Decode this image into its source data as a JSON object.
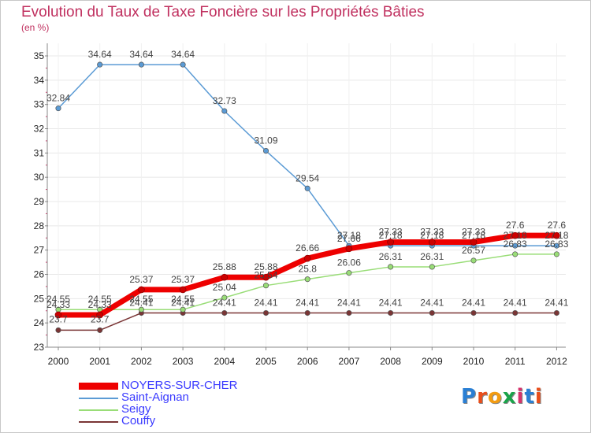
{
  "title": "Evolution du Taux de Taxe Foncière sur les Propriétés Bâties",
  "subtitle": "(en %)",
  "logo": "Proxiti",
  "chart_data": {
    "type": "line",
    "title": "Evolution du Taux de Taxe Foncière sur les Propriétés Bâties",
    "ylabel": "(en %)",
    "xlabel": "",
    "x": [
      "2000",
      "2001",
      "2002",
      "2003",
      "2004",
      "2005",
      "2006",
      "2007",
      "2008",
      "2009",
      "2010",
      "2011",
      "2012"
    ],
    "ylim": [
      23,
      35
    ],
    "yticks": [
      "23",
      "24",
      "25",
      "26",
      "27",
      "28",
      "29",
      "30",
      "31",
      "32",
      "33",
      "34",
      "35"
    ],
    "series": [
      {
        "name": "NOYERS-SUR-CHER",
        "color": "#ee0000",
        "values": [
          24.33,
          24.33,
          25.37,
          25.37,
          25.88,
          25.88,
          26.66,
          27.06,
          27.33,
          27.33,
          27.33,
          27.6,
          27.6
        ],
        "labels": [
          "24.33",
          "24.33",
          "25.37",
          "25.37",
          "25.88",
          "25.88",
          "26.66",
          "27.06",
          "27.33",
          "27.33",
          "27.33",
          "27.6",
          "27.6"
        ]
      },
      {
        "name": "Saint-Aignan",
        "color": "#5b9bd5",
        "values": [
          32.84,
          34.64,
          34.64,
          34.64,
          32.73,
          31.09,
          29.54,
          27.18,
          27.18,
          27.18,
          27.18,
          27.18,
          27.18
        ],
        "labels": [
          "32.84",
          "34.64",
          "34.64",
          "34.64",
          "32.73",
          "31.09",
          "29.54",
          "27.18",
          "27.18",
          "27.18",
          "27.18",
          "27.18",
          "27.18"
        ]
      },
      {
        "name": "Seigy",
        "color": "#99dd77",
        "values": [
          24.55,
          24.55,
          24.55,
          24.55,
          25.04,
          25.54,
          25.8,
          26.06,
          26.31,
          26.31,
          26.57,
          26.83,
          26.83
        ],
        "labels": [
          "24.55",
          "24.55",
          "24.55",
          "24.55",
          "25.04",
          "25.54",
          "25.8",
          "26.06",
          "26.31",
          "26.31",
          "26.57",
          "26.83",
          "26.83"
        ]
      },
      {
        "name": "Couffy",
        "color": "#7a3535",
        "values": [
          23.7,
          23.7,
          24.41,
          24.41,
          24.41,
          24.41,
          24.41,
          24.41,
          24.41,
          24.41,
          24.41,
          24.41,
          24.41
        ],
        "labels": [
          "23.7",
          "23.7",
          "24.41",
          "24.41",
          "24.41",
          "24.41",
          "24.41",
          "24.41",
          "24.41",
          "24.41",
          "24.41",
          "24.41",
          "24.41"
        ]
      }
    ],
    "legend": "bottom-left"
  }
}
